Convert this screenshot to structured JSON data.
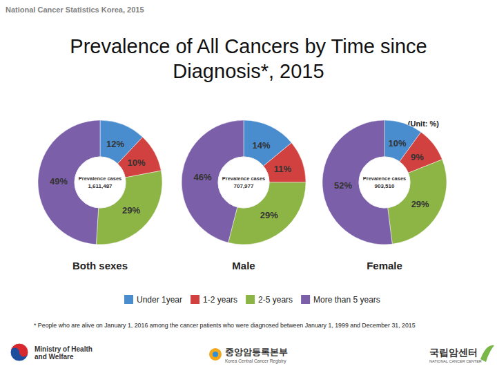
{
  "page": {
    "source": "National Cancer Statistics Korea, 2015",
    "title": [
      "Prevalence of All Cancers by Time since",
      "Diagnosis*, 2015"
    ],
    "unit": "(Unit: %)",
    "footnote": "* People who are alive on January 1, 2016 among the cancer patients who were diagnosed between January 1, 1999 and December 31, 2015",
    "logos": {
      "ministry": [
        "Ministry of Health",
        "and Welfare"
      ],
      "registry": [
        "중앙암등록본부",
        "Korea Central Cancer Registry"
      ],
      "center": [
        "국립암센터",
        "NATIONAL CANCER CENTER"
      ]
    }
  },
  "chart_data": [
    {
      "type": "pie",
      "title": "Both sexes",
      "categories": [
        "Under 1year",
        "1-2 years",
        "2-5 years",
        "More than 5 years"
      ],
      "values": [
        12,
        10,
        29,
        49
      ],
      "value_labels": [
        "12%",
        "10%",
        "29%",
        "49%"
      ],
      "colors": [
        "#4a8dcf",
        "#d0413f",
        "#8db545",
        "#7b5fa8"
      ],
      "data_labels": true,
      "legend": "bottom",
      "center": {
        "label": "Prevalence cases",
        "value": 1611487,
        "value_label": "1,611,487"
      }
    },
    {
      "type": "pie",
      "title": "Male",
      "categories": [
        "Under 1year",
        "1-2 years",
        "2-5 years",
        "More than 5 years"
      ],
      "values": [
        14,
        11,
        29,
        46
      ],
      "value_labels": [
        "14%",
        "11%",
        "29%",
        "46%"
      ],
      "colors": [
        "#4a8dcf",
        "#d0413f",
        "#8db545",
        "#7b5fa8"
      ],
      "data_labels": true,
      "center": {
        "label": "Prevalence cases",
        "value": 707977,
        "value_label": "707,977"
      }
    },
    {
      "type": "pie",
      "title": "Female",
      "categories": [
        "Under 1year",
        "1-2 years",
        "2-5 years",
        "More than 5 years"
      ],
      "values": [
        10,
        9,
        29,
        52
      ],
      "value_labels": [
        "10%",
        "9%",
        "29%",
        "52%"
      ],
      "colors": [
        "#4a8dcf",
        "#d0413f",
        "#8db545",
        "#7b5fa8"
      ],
      "data_labels": true,
      "center": {
        "label": "Prevalence cases",
        "value": 903510,
        "value_label": "903,510"
      }
    }
  ]
}
